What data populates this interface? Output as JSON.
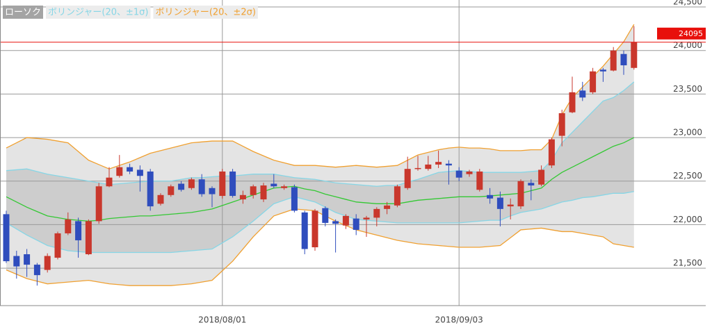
{
  "chart_data": {
    "type": "candlestick",
    "categories": [
      null,
      null,
      null,
      null,
      null,
      null,
      null,
      null,
      null,
      null,
      null,
      null,
      null,
      null,
      null,
      null,
      null,
      null,
      null,
      null,
      null,
      "2018/08/01",
      null,
      null,
      null,
      null,
      null,
      null,
      null,
      null,
      null,
      null,
      null,
      null,
      null,
      null,
      null,
      null,
      null,
      null,
      null,
      null,
      null,
      null,
      "2018/09/03",
      null,
      null,
      null,
      null,
      null,
      null,
      null,
      null,
      null,
      null,
      null,
      null,
      null,
      null,
      null,
      null,
      null
    ],
    "candles": {
      "name": "ローソク",
      "up_color": "#c9372c",
      "down_color": "#2f4dbd",
      "open": [
        22120,
        21640,
        21660,
        21540,
        21480,
        21620,
        21900,
        22040,
        21660,
        22040,
        22440,
        22560,
        22660,
        22630,
        22610,
        22240,
        22340,
        22470,
        22420,
        22520,
        22420,
        22330,
        22610,
        22290,
        22340,
        22290,
        22470,
        22420,
        22430,
        22140,
        21740,
        22190,
        22040,
        21990,
        22070,
        22060,
        22080,
        22180,
        22220,
        22420,
        22640,
        22640,
        22690,
        22700,
        22620,
        22580,
        22400,
        22340,
        22310,
        22210,
        22210,
        22480,
        22460,
        22680,
        23020,
        23290,
        23540,
        23520,
        23780,
        23770,
        23960,
        23800
      ],
      "high": [
        22160,
        21700,
        21720,
        21560,
        21670,
        21920,
        22140,
        22080,
        22060,
        22480,
        22660,
        22800,
        22700,
        22680,
        22640,
        22360,
        22460,
        22500,
        22540,
        22580,
        22440,
        22640,
        22640,
        22390,
        22460,
        22480,
        22580,
        22460,
        22460,
        22160,
        22180,
        22210,
        22060,
        22120,
        22120,
        22100,
        22200,
        22260,
        22460,
        22780,
        22790,
        22790,
        22850,
        22740,
        22660,
        22630,
        22640,
        22420,
        22380,
        22300,
        22520,
        22520,
        22680,
        23000,
        23320,
        23700,
        23640,
        23800,
        23800,
        24040,
        24000,
        24280
      ],
      "low": [
        21560,
        21380,
        21400,
        21300,
        21450,
        21600,
        21880,
        21620,
        21650,
        22010,
        22430,
        22540,
        22580,
        22380,
        22160,
        22220,
        22320,
        22380,
        22400,
        22320,
        22200,
        22300,
        22310,
        22240,
        22300,
        22260,
        22420,
        22400,
        22140,
        21660,
        21700,
        21980,
        21680,
        21950,
        21880,
        21860,
        21980,
        22120,
        22200,
        22400,
        22620,
        22620,
        22650,
        22460,
        22500,
        22550,
        22380,
        22240,
        21980,
        22060,
        22180,
        22280,
        22440,
        22650,
        22900,
        23280,
        23420,
        23500,
        23640,
        23760,
        23720,
        23780
      ],
      "close": [
        21580,
        21520,
        21540,
        21420,
        21640,
        21900,
        22060,
        21820,
        22040,
        22440,
        22540,
        22660,
        22610,
        22560,
        22210,
        22340,
        22440,
        22400,
        22520,
        22350,
        22350,
        22610,
        22330,
        22340,
        22440,
        22450,
        22440,
        22440,
        22160,
        21720,
        22160,
        22020,
        22010,
        22100,
        21940,
        22080,
        22180,
        22220,
        22440,
        22640,
        22650,
        22690,
        22720,
        22680,
        22540,
        22610,
        22610,
        22300,
        22180,
        22230,
        22500,
        22450,
        22630,
        22980,
        23280,
        23520,
        23460,
        23760,
        23760,
        24000,
        23830,
        24095
      ]
    },
    "bands": [
      {
        "name": "ボリンジャー(20、±2σ)",
        "color": "#f0a030",
        "fill": "#e4e4e4",
        "upper": [
          22880,
          22940,
          23000,
          22990,
          22980,
          22960,
          22940,
          22840,
          22740,
          22690,
          22640,
          22680,
          22720,
          22770,
          22820,
          22850,
          22880,
          22910,
          22940,
          22950,
          22960,
          22960,
          22960,
          22900,
          22840,
          22790,
          22740,
          22710,
          22680,
          22680,
          22680,
          22670,
          22660,
          22670,
          22680,
          22670,
          22660,
          22670,
          22680,
          22740,
          22800,
          22830,
          22860,
          22880,
          22890,
          22880,
          22880,
          22870,
          22850,
          22850,
          22850,
          22860,
          22860,
          22980,
          23260,
          23460,
          23580,
          23700,
          23820,
          23960,
          24100,
          24300
        ],
        "lower": [
          21480,
          21430,
          21380,
          21350,
          21320,
          21330,
          21340,
          21350,
          21360,
          21340,
          21320,
          21310,
          21300,
          21300,
          21300,
          21300,
          21300,
          21310,
          21320,
          21340,
          21360,
          21470,
          21580,
          21720,
          21860,
          21980,
          22100,
          22140,
          22180,
          22170,
          22160,
          22100,
          22040,
          21990,
          21940,
          21910,
          21880,
          21850,
          21820,
          21800,
          21780,
          21770,
          21760,
          21750,
          21740,
          21740,
          21740,
          21750,
          21760,
          21850,
          21940,
          21950,
          21960,
          21940,
          21920,
          21920,
          21900,
          21880,
          21860,
          21780,
          21760,
          21740
        ]
      },
      {
        "name": "ボリンジャー(20、±1σ)",
        "color": "#86d6e6",
        "fill": "#cdcdcd",
        "upper": [
          22620,
          22630,
          22640,
          22610,
          22580,
          22560,
          22540,
          22520,
          22500,
          22480,
          22460,
          22470,
          22480,
          22490,
          22500,
          22500,
          22500,
          22520,
          22540,
          22540,
          22550,
          22560,
          22560,
          22570,
          22580,
          22580,
          22580,
          22560,
          22540,
          22530,
          22520,
          22500,
          22480,
          22470,
          22460,
          22450,
          22440,
          22450,
          22450,
          22490,
          22520,
          22560,
          22600,
          22610,
          22620,
          22610,
          22600,
          22600,
          22600,
          22600,
          22600,
          22610,
          22620,
          22740,
          22940,
          23060,
          23180,
          23300,
          23420,
          23460,
          23540,
          23640
        ],
        "lower": [
          22020,
          21950,
          21880,
          21820,
          21760,
          21730,
          21700,
          21690,
          21680,
          21680,
          21680,
          21680,
          21680,
          21680,
          21680,
          21680,
          21680,
          21690,
          21700,
          21710,
          21720,
          21790,
          21860,
          21950,
          22040,
          22140,
          22240,
          22280,
          22320,
          22290,
          22260,
          22200,
          22140,
          22100,
          22060,
          22050,
          22040,
          22030,
          22020,
          22020,
          22020,
          22020,
          22020,
          22020,
          22020,
          22030,
          22040,
          22050,
          22050,
          22100,
          22140,
          22160,
          22180,
          22220,
          22260,
          22280,
          22310,
          22320,
          22340,
          22360,
          22360,
          22380
        ]
      }
    ],
    "middle": {
      "color": "#33c833",
      "values": [
        22320,
        22260,
        22200,
        22150,
        22100,
        22080,
        22060,
        22050,
        22040,
        22050,
        22070,
        22080,
        22090,
        22100,
        22100,
        22110,
        22120,
        22130,
        22140,
        22160,
        22180,
        22220,
        22260,
        22300,
        22340,
        22380,
        22420,
        22430,
        22440,
        22410,
        22390,
        22350,
        22320,
        22290,
        22260,
        22250,
        22240,
        22240,
        22240,
        22260,
        22280,
        22290,
        22300,
        22310,
        22320,
        22320,
        22320,
        22330,
        22340,
        22350,
        22360,
        22390,
        22420,
        22520,
        22600,
        22660,
        22720,
        22780,
        22840,
        22900,
        22940,
        23000
      ]
    },
    "last_price": 24095,
    "last_price_color": "#e8100c",
    "ylim": [
      21070,
      24580
    ],
    "yticks": [
      {
        "value": 21500,
        "label": "21,500"
      },
      {
        "value": 22000,
        "label": "22,000"
      },
      {
        "value": 22500,
        "label": "22,500"
      },
      {
        "value": 23000,
        "label": "23,000"
      },
      {
        "value": 23500,
        "label": "23,500"
      },
      {
        "value": 24000,
        "label": "24,000"
      },
      {
        "value": 24500,
        "label": "24,500"
      }
    ],
    "grid": true
  }
}
